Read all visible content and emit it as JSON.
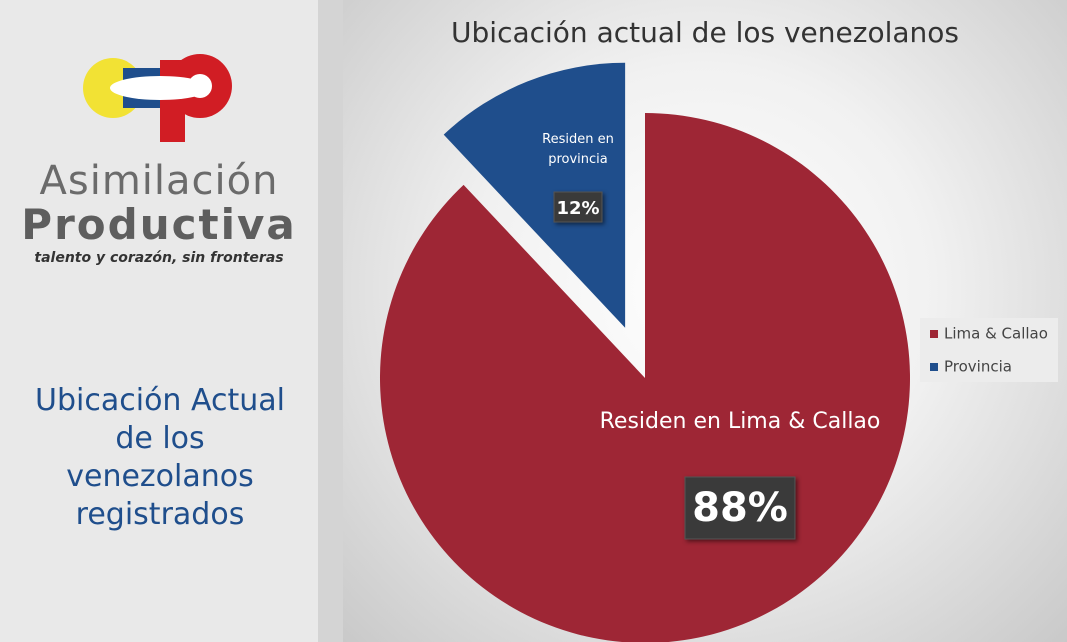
{
  "sidebar": {
    "brand_top": "Asimilación",
    "brand_bottom": "Productiva",
    "tagline": "talento  y corazón, sin fronteras",
    "heading": "Ubicación Actual de los venezolanos registrados"
  },
  "chart_data": {
    "type": "pie",
    "title": "Ubicación actual de los venezolanos",
    "categories": [
      "Lima & Callao",
      "Provincia"
    ],
    "values": [
      88,
      12
    ],
    "value_labels": [
      "88%",
      "12%"
    ],
    "slice_labels": [
      "Residen en Lima & Callao",
      "Residen en provincia"
    ],
    "colors": [
      "#9e2635",
      "#1f4e8c"
    ],
    "legend": "right"
  }
}
